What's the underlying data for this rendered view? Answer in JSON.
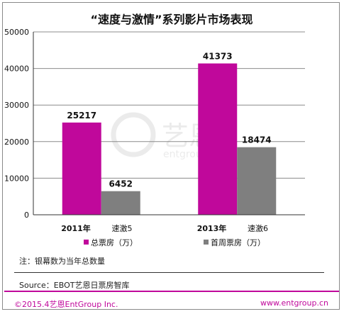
{
  "chart_data": {
    "type": "bar",
    "title": "“速度与激情”系列影片市场表现",
    "categories": [
      "2011年 速激5",
      "2013年 速激6"
    ],
    "category_labels": [
      {
        "year": "2011年",
        "film": "速激5"
      },
      {
        "year": "2013年",
        "film": "速激6"
      }
    ],
    "series": [
      {
        "name": "总票房（万）",
        "values": [
          25217,
          41373
        ],
        "color": "#c0089b"
      },
      {
        "name": "首周票房（万）",
        "values": [
          6452,
          18474
        ],
        "color": "#7f7f7f"
      }
    ],
    "ylim": [
      0,
      50000
    ],
    "yticks": [
      0,
      10000,
      20000,
      30000,
      40000,
      50000
    ],
    "grid": true,
    "legend_position": "bottom"
  },
  "note": "注：银幕数为当年总数量",
  "source": "Source：EBOT艺恩日票房智库",
  "copyright": "©2015.4艺恩EntGroup Inc.",
  "website": "www.entgroup.cn",
  "watermark": {
    "brand_cn": "艺恩",
    "brand_en": "entgroup"
  }
}
